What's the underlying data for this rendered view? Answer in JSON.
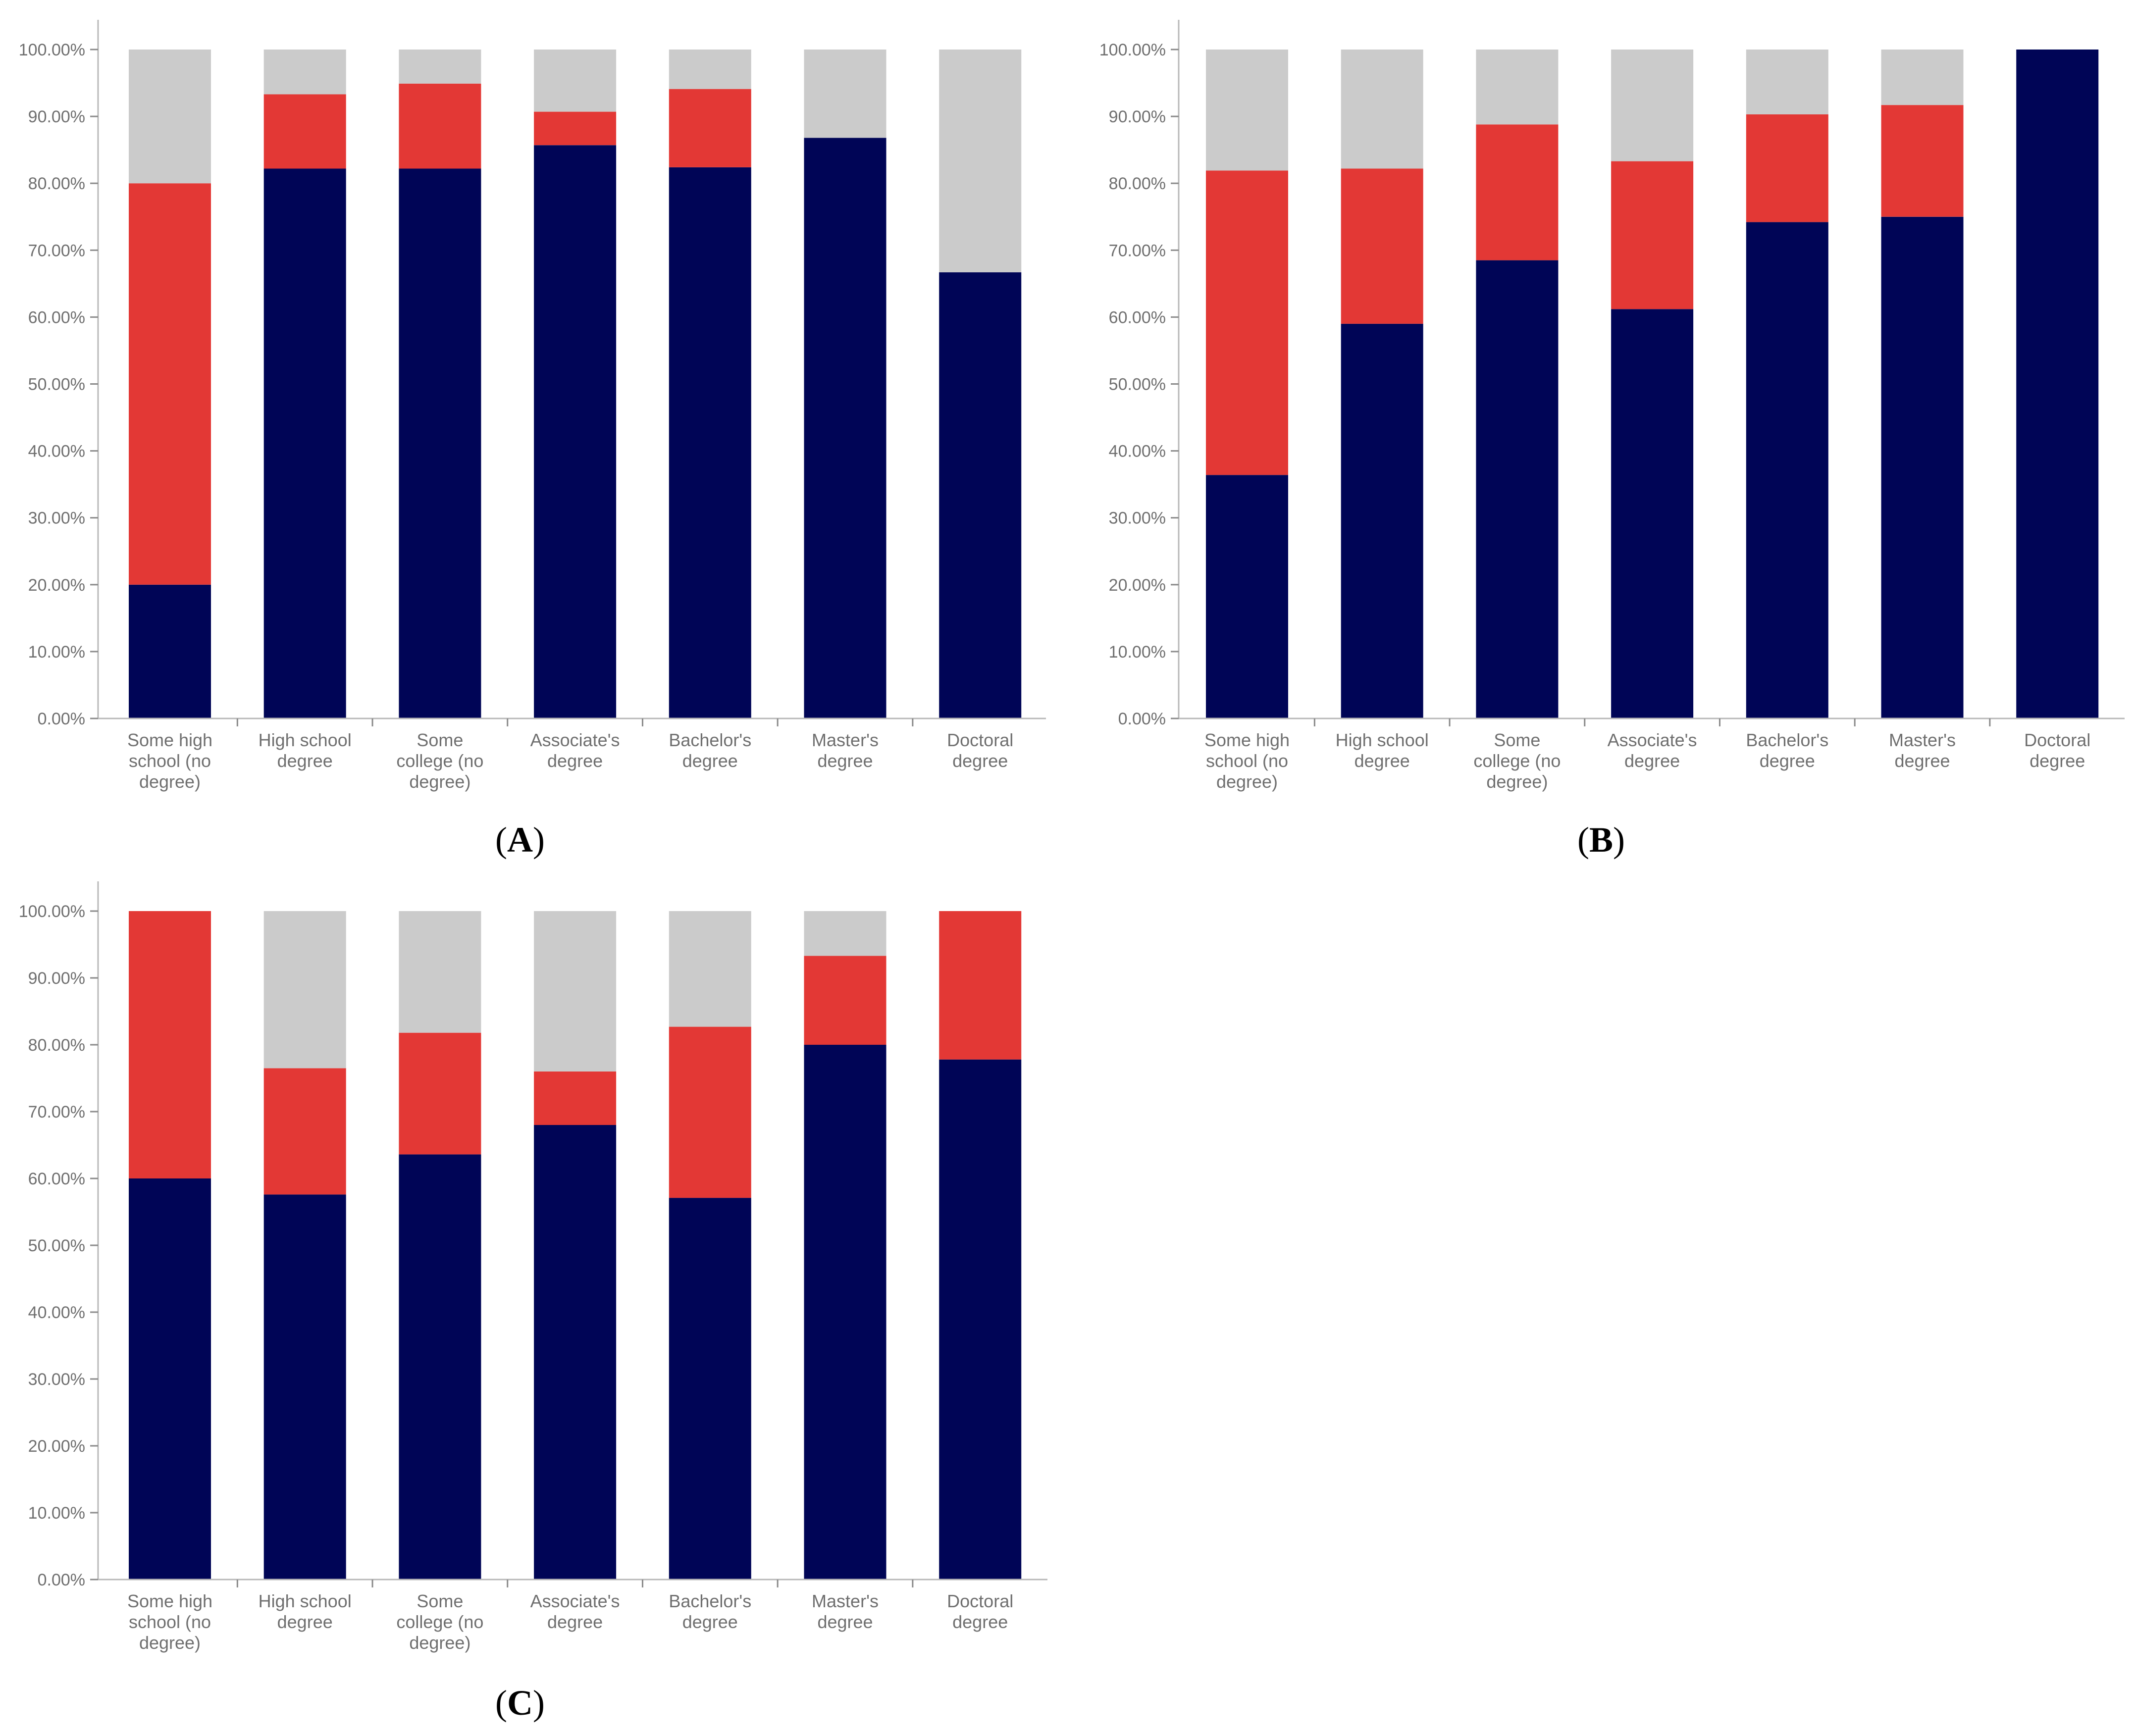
{
  "colors": {
    "segment_1": "#000556",
    "segment_2": "#e33835",
    "segment_3": "#cbcbcb",
    "axis": "#b8b8b8",
    "text": "#6f6f6f"
  },
  "chart_data": [
    {
      "type": "bar",
      "stacked": true,
      "panel_label": "A",
      "ylim": [
        0,
        100
      ],
      "y_ticks": [
        "0.00%",
        "10.00%",
        "20.00%",
        "30.00%",
        "40.00%",
        "50.00%",
        "60.00%",
        "70.00%",
        "80.00%",
        "90.00%",
        "100.00%"
      ],
      "categories": [
        [
          "Some high",
          "school (no",
          "degree)"
        ],
        [
          "High school",
          "degree"
        ],
        [
          "Some",
          "college (no",
          "degree)"
        ],
        [
          "Associate's",
          "degree"
        ],
        [
          "Bachelor's",
          "degree"
        ],
        [
          "Master's",
          "degree"
        ],
        [
          "Doctoral",
          "degree"
        ]
      ],
      "series": [
        {
          "name": "segment_1",
          "values": [
            20.0,
            82.2,
            82.2,
            85.7,
            82.4,
            86.8,
            66.7
          ]
        },
        {
          "name": "segment_2",
          "values": [
            60.0,
            11.1,
            12.7,
            5.0,
            11.7,
            0.0,
            0.0
          ]
        },
        {
          "name": "segment_3",
          "values": [
            20.0,
            6.7,
            5.1,
            9.3,
            5.9,
            13.2,
            33.3
          ]
        }
      ]
    },
    {
      "type": "bar",
      "stacked": true,
      "panel_label": "B",
      "ylim": [
        0,
        100
      ],
      "y_ticks": [
        "0.00%",
        "10.00%",
        "20.00%",
        "30.00%",
        "40.00%",
        "50.00%",
        "60.00%",
        "70.00%",
        "80.00%",
        "90.00%",
        "100.00%"
      ],
      "categories": [
        [
          "Some high",
          "school (no",
          "degree)"
        ],
        [
          "High school",
          "degree"
        ],
        [
          "Some",
          "college (no",
          "degree)"
        ],
        [
          "Associate's",
          "degree"
        ],
        [
          "Bachelor's",
          "degree"
        ],
        [
          "Master's",
          "degree"
        ],
        [
          "Doctoral",
          "degree"
        ]
      ],
      "series": [
        {
          "name": "segment_1",
          "values": [
            36.4,
            59.0,
            68.5,
            61.2,
            74.2,
            75.0,
            100.0
          ]
        },
        {
          "name": "segment_2",
          "values": [
            45.5,
            23.2,
            20.3,
            22.1,
            16.1,
            16.7,
            0.0
          ]
        },
        {
          "name": "segment_3",
          "values": [
            18.1,
            17.8,
            11.2,
            16.7,
            9.7,
            8.3,
            0.0
          ]
        }
      ]
    },
    {
      "type": "bar",
      "stacked": true,
      "panel_label": "C",
      "ylim": [
        0,
        100
      ],
      "y_ticks": [
        "0.00%",
        "10.00%",
        "20.00%",
        "30.00%",
        "40.00%",
        "50.00%",
        "60.00%",
        "70.00%",
        "80.00%",
        "90.00%",
        "100.00%"
      ],
      "categories": [
        [
          "Some high",
          "school (no",
          "degree)"
        ],
        [
          "High school",
          "degree"
        ],
        [
          "Some",
          "college (no",
          "degree)"
        ],
        [
          "Associate's",
          "degree"
        ],
        [
          "Bachelor's",
          "degree"
        ],
        [
          "Master's",
          "degree"
        ],
        [
          "Doctoral",
          "degree"
        ]
      ],
      "series": [
        {
          "name": "segment_1",
          "values": [
            60.0,
            57.6,
            63.6,
            68.0,
            57.1,
            80.0,
            77.8
          ]
        },
        {
          "name": "segment_2",
          "values": [
            40.0,
            18.9,
            18.2,
            8.0,
            25.6,
            13.3,
            22.2
          ]
        },
        {
          "name": "segment_3",
          "values": [
            0.0,
            23.5,
            18.2,
            24.0,
            17.3,
            6.7,
            0.0
          ]
        }
      ]
    }
  ]
}
